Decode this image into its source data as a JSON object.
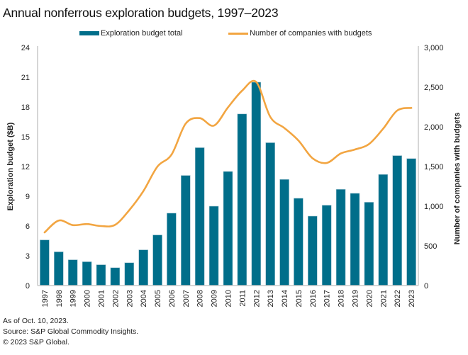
{
  "title": "Annual nonferrous exploration budgets, 1997–2023",
  "legend": {
    "bar_label": "Exploration budget total",
    "line_label": "Number of companies with budgets"
  },
  "colors": {
    "bar": "#006E8A",
    "line": "#F2A541",
    "axis": "#C8C8C8"
  },
  "footer": {
    "line1": "As of Oct. 10, 2023.",
    "line2": "Source: S&P Global Commodity Insights.",
    "line3": "© 2023 S&P Global."
  },
  "chart_data": {
    "type": "bar",
    "title": "Annual nonferrous exploration budgets, 1997–2023",
    "categories": [
      "1997",
      "1998",
      "1999",
      "2000",
      "2001",
      "2002",
      "2003",
      "2004",
      "2005",
      "2006",
      "2007",
      "2008",
      "2009",
      "2010",
      "2011",
      "2012",
      "2013",
      "2014",
      "2015",
      "2016",
      "2017",
      "2018",
      "2019",
      "2020",
      "2021",
      "2022",
      "2023"
    ],
    "series": [
      {
        "name": "Exploration budget total",
        "type": "bar",
        "axis": "left",
        "values": [
          4.6,
          3.4,
          2.6,
          2.4,
          2.1,
          1.8,
          2.3,
          3.6,
          5.1,
          7.3,
          11.1,
          13.9,
          8.0,
          11.5,
          17.3,
          20.5,
          14.4,
          10.7,
          8.8,
          7.0,
          8.1,
          9.7,
          9.3,
          8.4,
          11.2,
          13.1,
          12.8
        ]
      },
      {
        "name": "Number of companies with budgets",
        "type": "line",
        "axis": "right",
        "values": [
          670,
          820,
          762,
          775,
          750,
          765,
          950,
          1190,
          1500,
          1650,
          2040,
          2110,
          2015,
          2245,
          2455,
          2565,
          2125,
          1985,
          1827,
          1604,
          1545,
          1664,
          1714,
          1783,
          1976,
          2205,
          2238
        ]
      }
    ],
    "xlabel": "",
    "ylabel": "Exploration budget ($B)",
    "ylabel_right": "Number of companies with budgets",
    "ylim": [
      0,
      24
    ],
    "ylim_right": [
      0,
      3000
    ],
    "yticks": [
      "0",
      "3",
      "6",
      "9",
      "12",
      "15",
      "18",
      "21",
      "24"
    ],
    "yticks_right": [
      "0",
      "500",
      "1,000",
      "1,500",
      "2,000",
      "2,500",
      "3,000"
    ],
    "grid": false,
    "legend_position": "top-center"
  }
}
